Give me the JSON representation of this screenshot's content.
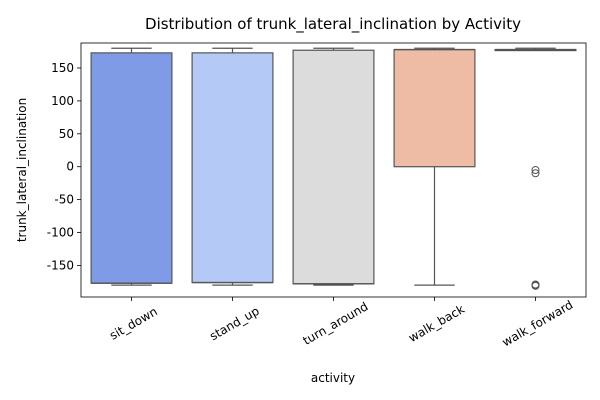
{
  "chart_data": {
    "type": "box",
    "title": "Distribution of trunk_lateral_inclination by Activity",
    "xlabel": "activity",
    "ylabel": "trunk_lateral_inclination",
    "ylim": [
      -198,
      188
    ],
    "yticks": [
      -150,
      -100,
      -50,
      0,
      50,
      100,
      150
    ],
    "grid": false,
    "categories": [
      "sit_down",
      "stand_up",
      "turn_around",
      "walk_back",
      "walk_forward"
    ],
    "boxes": [
      {
        "category": "sit_down",
        "whisker_low": -180,
        "q1": -177,
        "median": -177,
        "q3": 173,
        "whisker_high": 180,
        "color": "#7f9be6",
        "outliers": []
      },
      {
        "category": "stand_up",
        "whisker_low": -180,
        "q1": -176,
        "median": -176,
        "q3": 173,
        "whisker_high": 180,
        "color": "#b4c9f5",
        "outliers": []
      },
      {
        "category": "turn_around",
        "whisker_low": -180,
        "q1": -178,
        "median": -178,
        "q3": 177,
        "whisker_high": 180,
        "color": "#dcdcdc",
        "outliers": []
      },
      {
        "category": "walk_back",
        "whisker_low": -180,
        "q1": 0,
        "median": 178,
        "q3": 178,
        "whisker_high": 180,
        "color": "#eebca5",
        "outliers": []
      },
      {
        "category": "walk_forward",
        "whisker_low": 177,
        "q1": 178,
        "median": 178,
        "q3": 178,
        "whisker_high": 180,
        "color": "#ecdcd6",
        "outliers": [
          -5,
          -10,
          -179,
          -180,
          -181
        ]
      }
    ]
  }
}
